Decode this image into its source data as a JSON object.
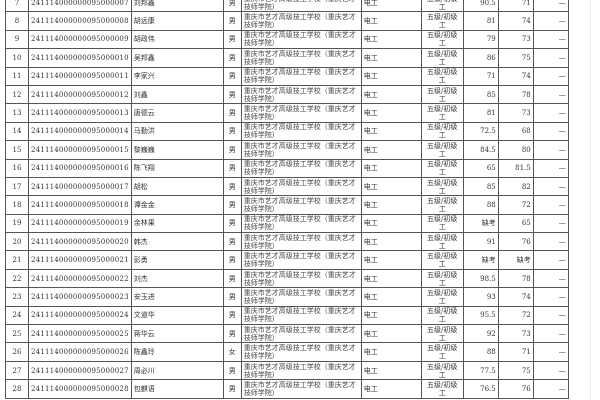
{
  "school": "重庆市艺才高级技工学校（重庆艺才技师学院）",
  "major": "电工",
  "level": "五级/初级工",
  "result_placeholder": "—",
  "rows": [
    {
      "no": "7",
      "id": "241114000000095000007",
      "name": "刘邦鑫",
      "gender": "男",
      "score1": "90.5",
      "score2": "71"
    },
    {
      "no": "8",
      "id": "241114000000095000008",
      "name": "胡远康",
      "gender": "男",
      "score1": "81",
      "score2": "74"
    },
    {
      "no": "9",
      "id": "241114000000095000009",
      "name": "胡政伟",
      "gender": "男",
      "score1": "79",
      "score2": "73"
    },
    {
      "no": "10",
      "id": "241114000000095000010",
      "name": "吴邦鑫",
      "gender": "男",
      "score1": "86",
      "score2": "75"
    },
    {
      "no": "11",
      "id": "241114000000095000011",
      "name": "李家兴",
      "gender": "男",
      "score1": "71",
      "score2": "74"
    },
    {
      "no": "12",
      "id": "241114000000095000012",
      "name": "刘鑫",
      "gender": "男",
      "score1": "85",
      "score2": "78"
    },
    {
      "no": "13",
      "id": "241114000000095000013",
      "name": "唐德云",
      "gender": "男",
      "score1": "81",
      "score2": "73"
    },
    {
      "no": "14",
      "id": "241114000000095000014",
      "name": "马勤洪",
      "gender": "男",
      "score1": "72.5",
      "score2": "68"
    },
    {
      "no": "15",
      "id": "241114000000095000015",
      "name": "黎巍巍",
      "gender": "男",
      "score1": "84.5",
      "score2": "80"
    },
    {
      "no": "16",
      "id": "241114000000095000016",
      "name": "陈飞翔",
      "gender": "男",
      "score1": "65",
      "score2": "81.5"
    },
    {
      "no": "17",
      "id": "241114000000095000017",
      "name": "胡松",
      "gender": "男",
      "score1": "85",
      "score2": "82"
    },
    {
      "no": "18",
      "id": "241114000000095000018",
      "name": "谭金金",
      "gender": "男",
      "score1": "88",
      "score2": "72"
    },
    {
      "no": "19",
      "id": "241114000000095000019",
      "name": "余林果",
      "gender": "男",
      "score1": "缺考",
      "score2": "65"
    },
    {
      "no": "20",
      "id": "241114000000095000020",
      "name": "韩杰",
      "gender": "男",
      "score1": "91",
      "score2": "76"
    },
    {
      "no": "21",
      "id": "241114000000095000021",
      "name": "彭勇",
      "gender": "男",
      "score1": "缺考",
      "score2": "缺考"
    },
    {
      "no": "22",
      "id": "241114000000095000022",
      "name": "刘杰",
      "gender": "男",
      "score1": "98.5",
      "score2": "78"
    },
    {
      "no": "23",
      "id": "241114000000095000023",
      "name": "安玉进",
      "gender": "男",
      "score1": "93",
      "score2": "74"
    },
    {
      "no": "24",
      "id": "241114000000095000024",
      "name": "文道华",
      "gender": "男",
      "score1": "95.5",
      "score2": "72"
    },
    {
      "no": "25",
      "id": "241114000000095000025",
      "name": "蒋华云",
      "gender": "男",
      "score1": "92",
      "score2": "73"
    },
    {
      "no": "26",
      "id": "241114000000095000026",
      "name": "陈鑫玲",
      "gender": "女",
      "score1": "88",
      "score2": "71"
    },
    {
      "no": "27",
      "id": "241114000000095000027",
      "name": "周必川",
      "gender": "男",
      "score1": "77.5",
      "score2": "75"
    },
    {
      "no": "28",
      "id": "241114000000095000028",
      "name": "包麒语",
      "gender": "男",
      "score1": "76.5",
      "score2": "76"
    }
  ]
}
